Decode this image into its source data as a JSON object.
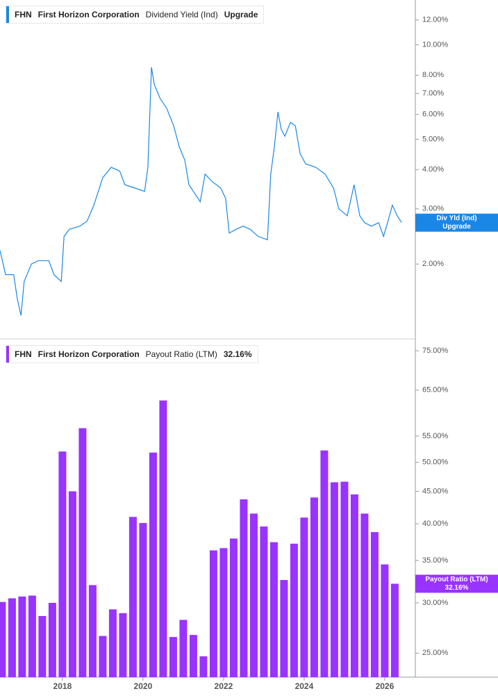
{
  "chart_data": [
    {
      "type": "line",
      "ticker": "FHN",
      "company": "First Horizon Corporation",
      "metric": "Dividend Yield (Ind)",
      "metric_value": "Upgrade",
      "log": true,
      "xlim": [
        2016.45,
        2026.76
      ],
      "ylim": [
        1.16,
        13.9
      ],
      "yticks": [
        {
          "value": 2,
          "label": "2.00%"
        },
        {
          "value": 3,
          "label": "3.00%"
        },
        {
          "value": 4,
          "label": "4.00%"
        },
        {
          "value": 5,
          "label": "5.00%"
        },
        {
          "value": 6,
          "label": "6.00%"
        },
        {
          "value": 7,
          "label": "7.00%"
        },
        {
          "value": 8,
          "label": "8.00%"
        },
        {
          "value": 10,
          "label": "10.00%"
        },
        {
          "value": 12,
          "label": "12.00%"
        }
      ],
      "series": [
        {
          "name": "Div Yld (Ind)",
          "color": "#1a87e6",
          "end_label": "Upgrade",
          "x": [
            2016.45,
            2016.59,
            2016.79,
            2016.88,
            2016.97,
            2017.05,
            2017.23,
            2017.4,
            2017.66,
            2017.79,
            2017.97,
            2018.04,
            2018.17,
            2018.43,
            2018.61,
            2018.78,
            2019.0,
            2019.21,
            2019.42,
            2019.55,
            2019.81,
            2020.04,
            2020.12,
            2020.21,
            2020.28,
            2020.42,
            2020.59,
            2020.76,
            2020.9,
            2021.04,
            2021.14,
            2021.31,
            2021.42,
            2021.54,
            2021.71,
            2021.93,
            2022.05,
            2022.14,
            2022.31,
            2022.48,
            2022.66,
            2022.86,
            2023.09,
            2023.17,
            2023.26,
            2023.35,
            2023.43,
            2023.52,
            2023.66,
            2023.78,
            2023.9,
            2024.04,
            2024.29,
            2024.52,
            2024.73,
            2024.86,
            2025.07,
            2025.24,
            2025.38,
            2025.5,
            2025.67,
            2025.85,
            2025.97,
            2026.07,
            2026.19,
            2026.31,
            2026.42
          ],
          "values": [
            2.21,
            1.85,
            1.85,
            1.55,
            1.37,
            1.76,
            2.0,
            2.05,
            2.05,
            1.85,
            1.76,
            2.45,
            2.58,
            2.64,
            2.74,
            3.08,
            3.77,
            4.07,
            3.96,
            3.58,
            3.49,
            3.41,
            4.07,
            8.49,
            7.48,
            6.76,
            6.27,
            5.52,
            4.73,
            4.28,
            3.58,
            3.32,
            3.16,
            3.87,
            3.67,
            3.49,
            3.24,
            2.51,
            2.58,
            2.64,
            2.58,
            2.45,
            2.39,
            3.87,
            4.73,
            6.11,
            5.38,
            5.11,
            5.66,
            5.52,
            4.5,
            4.17,
            4.07,
            3.87,
            3.49,
            3.0,
            2.85,
            3.58,
            2.85,
            2.71,
            2.64,
            2.71,
            2.45,
            2.71,
            3.08,
            2.85,
            2.71
          ]
        }
      ]
    },
    {
      "type": "bar",
      "ticker": "FHN",
      "company": "First Horizon Corporation",
      "metric": "Payout Ratio (LTM)",
      "metric_value": "32.16%",
      "log": true,
      "xlim": [
        2016.45,
        2026.76
      ],
      "ylim": [
        22.9,
        77.9
      ],
      "xticks": [
        2018,
        2020,
        2022,
        2024,
        2026
      ],
      "yticks": [
        {
          "value": 25,
          "label": "25.00%"
        },
        {
          "value": 30,
          "label": "30.00%"
        },
        {
          "value": 35,
          "label": "35.00%"
        },
        {
          "value": 40,
          "label": "40.00%"
        },
        {
          "value": 45,
          "label": "45.00%"
        },
        {
          "value": 50,
          "label": "50.00%"
        },
        {
          "value": 55,
          "label": "55.00%"
        },
        {
          "value": 65,
          "label": "65.00%"
        },
        {
          "value": 75,
          "label": "75.00%"
        }
      ],
      "series": [
        {
          "name": "Payout Ratio (LTM)",
          "color": "#9933ff",
          "end_label": "32.16%",
          "x": [
            2016.5,
            2016.75,
            2017,
            2017.25,
            2017.5,
            2017.75,
            2018,
            2018.25,
            2018.5,
            2018.75,
            2019,
            2019.25,
            2019.5,
            2019.75,
            2020,
            2020.25,
            2020.5,
            2020.75,
            2021,
            2021.25,
            2021.5,
            2021.75,
            2022,
            2022.25,
            2022.5,
            2022.75,
            2023,
            2023.25,
            2023.5,
            2023.75,
            2024,
            2024.25,
            2024.5,
            2024.75,
            2025,
            2025.25,
            2025.5,
            2025.75,
            2026,
            2026.25
          ],
          "values": [
            30.1,
            30.5,
            30.7,
            30.8,
            28.6,
            30.0,
            52.0,
            45.0,
            56.6,
            32.0,
            26.6,
            29.3,
            28.9,
            41.0,
            40.1,
            51.8,
            62.6,
            26.5,
            28.2,
            26.7,
            24.7,
            36.3,
            36.6,
            37.9,
            43.7,
            41.5,
            39.6,
            37.4,
            32.6,
            37.2,
            40.9,
            44.0,
            52.2,
            46.5,
            46.6,
            44.5,
            41.5,
            38.8,
            34.5,
            32.16
          ]
        }
      ]
    }
  ]
}
